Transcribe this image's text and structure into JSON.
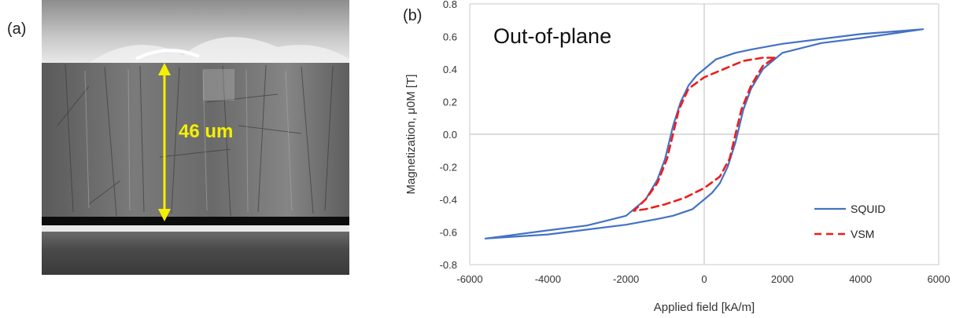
{
  "panel_a": {
    "label": "(a)",
    "measurement_text": "46 um",
    "colors": {
      "arrow": "#f5f000",
      "measurement": "#f5f000"
    }
  },
  "panel_b": {
    "label": "(b)"
  },
  "chart_data": {
    "type": "line",
    "title": "Out-of-plane",
    "xlabel": "Applied field [kA/m]",
    "ylabel": "Magnetization, μ0M [T]",
    "xlim": [
      -6000,
      6000
    ],
    "ylim": [
      -0.8,
      0.8
    ],
    "xticks": [
      "-6000",
      "-4000",
      "-2000",
      "0",
      "2000",
      "4000",
      "6000"
    ],
    "yticks": [
      "0.8",
      "0.6",
      "0.4",
      "0.2",
      "0.0",
      "-0.2",
      "-0.4",
      "-0.6",
      "-0.8"
    ],
    "grid": "zero-lines",
    "legend_position": "bottom-right",
    "series": [
      {
        "name": "SQUID",
        "color": "#4472c4",
        "dash": "solid",
        "points": [
          [
            5600,
            0.645
          ],
          [
            4000,
            0.615
          ],
          [
            2000,
            0.555
          ],
          [
            1200,
            0.52
          ],
          [
            800,
            0.5
          ],
          [
            300,
            0.46
          ],
          [
            0,
            0.4
          ],
          [
            -200,
            0.36
          ],
          [
            -400,
            0.3
          ],
          [
            -600,
            0.2
          ],
          [
            -800,
            0.05
          ],
          [
            -900,
            -0.05
          ],
          [
            -1000,
            -0.15
          ],
          [
            -1200,
            -0.28
          ],
          [
            -1500,
            -0.4
          ],
          [
            -2000,
            -0.5
          ],
          [
            -3000,
            -0.56
          ],
          [
            -4000,
            -0.59
          ],
          [
            -5600,
            -0.64
          ],
          [
            -4000,
            -0.615
          ],
          [
            -2000,
            -0.555
          ],
          [
            -1200,
            -0.52
          ],
          [
            -800,
            -0.5
          ],
          [
            -300,
            -0.46
          ],
          [
            0,
            -0.4
          ],
          [
            200,
            -0.36
          ],
          [
            400,
            -0.3
          ],
          [
            600,
            -0.2
          ],
          [
            800,
            -0.05
          ],
          [
            900,
            0.05
          ],
          [
            1000,
            0.15
          ],
          [
            1200,
            0.28
          ],
          [
            1500,
            0.4
          ],
          [
            2000,
            0.5
          ],
          [
            3000,
            0.56
          ],
          [
            4000,
            0.59
          ],
          [
            5600,
            0.645
          ]
        ]
      },
      {
        "name": "VSM",
        "color": "#ee1c1c",
        "dash": "dashed",
        "points": [
          [
            1800,
            0.47
          ],
          [
            1500,
            0.47
          ],
          [
            1000,
            0.45
          ],
          [
            500,
            0.4
          ],
          [
            0,
            0.35
          ],
          [
            -400,
            0.28
          ],
          [
            -650,
            0.15
          ],
          [
            -800,
            0.0
          ],
          [
            -950,
            -0.15
          ],
          [
            -1200,
            -0.3
          ],
          [
            -1500,
            -0.4
          ],
          [
            -1800,
            -0.47
          ],
          [
            -1500,
            -0.46
          ],
          [
            -1000,
            -0.43
          ],
          [
            -500,
            -0.39
          ],
          [
            0,
            -0.33
          ],
          [
            400,
            -0.26
          ],
          [
            650,
            -0.15
          ],
          [
            800,
            0.0
          ],
          [
            950,
            0.15
          ],
          [
            1200,
            0.3
          ],
          [
            1500,
            0.42
          ],
          [
            1800,
            0.47
          ]
        ]
      }
    ]
  }
}
